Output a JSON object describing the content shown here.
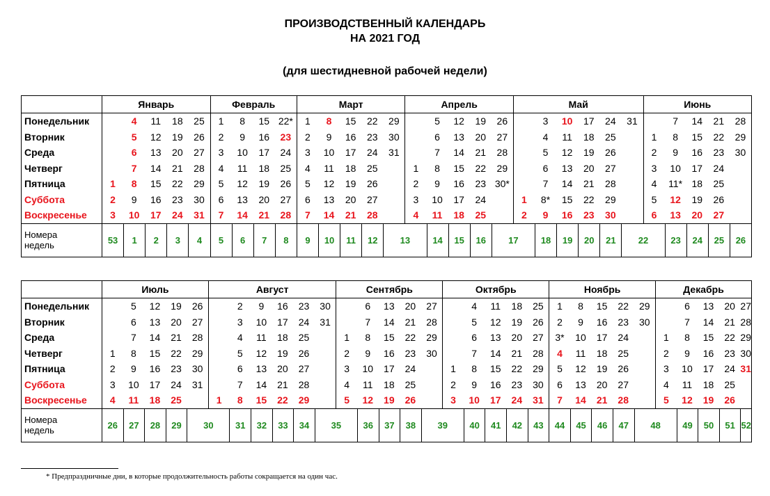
{
  "title_line1": "ПРОИЗВОДСТВЕННЫЙ КАЛЕНДАРЬ",
  "title_line2": "НА 2021 ГОД",
  "subtitle": "(для шестидневной рабочей недели)",
  "weekdays": [
    "Понедельник",
    "Вторник",
    "Среда",
    "Четверг",
    "Пятница",
    "Суббота",
    "Воскресенье"
  ],
  "weekend_rows": [
    5,
    6
  ],
  "week_label": "Номера\nнедель",
  "colors": {
    "holiday": "#e8141c",
    "week_number": "#1f8a1f"
  },
  "footnote": "* Предпраздничные дни, в которые продолжительность работы сокращается на один час.",
  "halves": [
    {
      "months": [
        {
          "name": "Январь",
          "cols": [
            [
              "",
              "",
              "",
              "",
              "1",
              "2",
              "3"
            ],
            [
              "4",
              "5",
              "6",
              "7",
              "8",
              "9",
              "10"
            ],
            [
              "11",
              "12",
              "13",
              "14",
              "15",
              "16",
              "17"
            ],
            [
              "18",
              "19",
              "20",
              "21",
              "22",
              "23",
              "24"
            ],
            [
              "25",
              "26",
              "27",
              "28",
              "29",
              "30",
              "31"
            ]
          ],
          "weeks": [
            "53",
            "1",
            "2",
            "3",
            "4"
          ],
          "red": [
            "1",
            "2",
            "3",
            "4",
            "5",
            "6",
            "7",
            "8",
            "10",
            "17",
            "24",
            "31"
          ]
        },
        {
          "name": "Февраль",
          "cols": [
            [
              "1",
              "2",
              "3",
              "4",
              "5",
              "6",
              "7"
            ],
            [
              "8",
              "9",
              "10",
              "11",
              "12",
              "13",
              "14"
            ],
            [
              "15",
              "16",
              "17",
              "18",
              "19",
              "20",
              "21"
            ],
            [
              "22*",
              "23",
              "24",
              "25",
              "26",
              "27",
              "28"
            ]
          ],
          "weeks": [
            "5",
            "6",
            "7",
            "8"
          ],
          "red": [
            "7",
            "14",
            "21",
            "23",
            "28"
          ]
        },
        {
          "name": "Март",
          "cols": [
            [
              "1",
              "2",
              "3",
              "4",
              "5",
              "6",
              "7"
            ],
            [
              "8",
              "9",
              "10",
              "11",
              "12",
              "13",
              "14"
            ],
            [
              "15",
              "16",
              "17",
              "18",
              "19",
              "20",
              "21"
            ],
            [
              "22",
              "23",
              "24",
              "25",
              "26",
              "27",
              "28"
            ],
            [
              "29",
              "30",
              "31",
              "",
              "",
              "",
              ""
            ]
          ],
          "weeks": [
            "9",
            "10",
            "11",
            "12",
            "13"
          ],
          "red": [
            "7",
            "8",
            "14",
            "21",
            "28"
          ]
        },
        {
          "name": "Апрель",
          "cols": [
            [
              "",
              "",
              "",
              "1",
              "2",
              "3",
              "4"
            ],
            [
              "5",
              "6",
              "7",
              "8",
              "9",
              "10",
              "11"
            ],
            [
              "12",
              "13",
              "14",
              "15",
              "16",
              "17",
              "18"
            ],
            [
              "19",
              "20",
              "21",
              "22",
              "23",
              "24",
              "25"
            ],
            [
              "26",
              "27",
              "28",
              "29",
              "30*",
              "",
              ""
            ]
          ],
          "weeks": [
            "13",
            "14",
            "15",
            "16",
            "17"
          ],
          "red": [
            "4",
            "11",
            "18",
            "25"
          ]
        },
        {
          "name": "Май",
          "cols": [
            [
              "",
              "",
              "",
              "",
              "",
              "1",
              "2"
            ],
            [
              "3",
              "4",
              "5",
              "6",
              "7",
              "8*",
              "9"
            ],
            [
              "10",
              "11",
              "12",
              "13",
              "14",
              "15",
              "16"
            ],
            [
              "17",
              "18",
              "19",
              "20",
              "21",
              "22",
              "23"
            ],
            [
              "24",
              "25",
              "26",
              "27",
              "28",
              "29",
              "30"
            ],
            [
              "31",
              "",
              "",
              "",
              "",
              "",
              ""
            ]
          ],
          "weeks": [
            "17",
            "18",
            "19",
            "20",
            "21",
            "22"
          ],
          "red": [
            "1",
            "2",
            "9",
            "10",
            "16",
            "23",
            "30"
          ]
        },
        {
          "name": "Июнь",
          "cols": [
            [
              "",
              "1",
              "2",
              "3",
              "4",
              "5",
              "6"
            ],
            [
              "7",
              "8",
              "9",
              "10",
              "11*",
              "12",
              "13"
            ],
            [
              "14",
              "15",
              "16",
              "17",
              "18",
              "19",
              "20"
            ],
            [
              "21",
              "22",
              "23",
              "24",
              "25",
              "26",
              "27"
            ],
            [
              "28",
              "29",
              "30",
              "",
              "",
              "",
              ""
            ]
          ],
          "weeks": [
            "22",
            "23",
            "24",
            "25",
            "26"
          ],
          "red": [
            "6",
            "12",
            "13",
            "20",
            "27"
          ]
        }
      ]
    },
    {
      "months": [
        {
          "name": "Июль",
          "cols": [
            [
              "",
              "",
              "",
              "1",
              "2",
              "3",
              "4"
            ],
            [
              "5",
              "6",
              "7",
              "8",
              "9",
              "10",
              "11"
            ],
            [
              "12",
              "13",
              "14",
              "15",
              "16",
              "17",
              "18"
            ],
            [
              "19",
              "20",
              "21",
              "22",
              "23",
              "24",
              "25"
            ],
            [
              "26",
              "27",
              "28",
              "29",
              "30",
              "31",
              ""
            ]
          ],
          "weeks": [
            "26",
            "27",
            "28",
            "29",
            "30"
          ],
          "red": [
            "4",
            "11",
            "18",
            "25"
          ]
        },
        {
          "name": "Август",
          "cols": [
            [
              "",
              "",
              "",
              "",
              "",
              "",
              "1"
            ],
            [
              "2",
              "3",
              "4",
              "5",
              "6",
              "7",
              "8"
            ],
            [
              "9",
              "10",
              "11",
              "12",
              "13",
              "14",
              "15"
            ],
            [
              "16",
              "17",
              "18",
              "19",
              "20",
              "21",
              "22"
            ],
            [
              "23",
              "24",
              "25",
              "26",
              "27",
              "28",
              "29"
            ],
            [
              "30",
              "31",
              "",
              "",
              "",
              "",
              ""
            ]
          ],
          "weeks": [
            "30",
            "31",
            "32",
            "33",
            "34",
            "35"
          ],
          "red": [
            "1",
            "8",
            "15",
            "22",
            "29"
          ]
        },
        {
          "name": "Сентябрь",
          "cols": [
            [
              "",
              "",
              "1",
              "2",
              "3",
              "4",
              "5"
            ],
            [
              "6",
              "7",
              "8",
              "9",
              "10",
              "11",
              "12"
            ],
            [
              "13",
              "14",
              "15",
              "16",
              "17",
              "18",
              "19"
            ],
            [
              "20",
              "21",
              "22",
              "23",
              "24",
              "25",
              "26"
            ],
            [
              "27",
              "28",
              "29",
              "30",
              "",
              "",
              ""
            ]
          ],
          "weeks": [
            "35",
            "36",
            "37",
            "38",
            "39"
          ],
          "red": [
            "5",
            "12",
            "19",
            "26"
          ]
        },
        {
          "name": "Октябрь",
          "cols": [
            [
              "",
              "",
              "",
              "",
              "1",
              "2",
              "3"
            ],
            [
              "4",
              "5",
              "6",
              "7",
              "8",
              "9",
              "10"
            ],
            [
              "11",
              "12",
              "13",
              "14",
              "15",
              "16",
              "17"
            ],
            [
              "18",
              "19",
              "20",
              "21",
              "22",
              "23",
              "24"
            ],
            [
              "25",
              "26",
              "27",
              "28",
              "29",
              "30",
              "31"
            ]
          ],
          "weeks": [
            "39",
            "40",
            "41",
            "42",
            "43"
          ],
          "red": [
            "3",
            "10",
            "17",
            "24",
            "31"
          ]
        },
        {
          "name": "Ноябрь",
          "cols": [
            [
              "1",
              "2",
              "3*",
              "4",
              "5",
              "6",
              "7"
            ],
            [
              "8",
              "9",
              "10",
              "11",
              "12",
              "13",
              "14"
            ],
            [
              "15",
              "16",
              "17",
              "18",
              "19",
              "20",
              "21"
            ],
            [
              "22",
              "23",
              "24",
              "25",
              "26",
              "27",
              "28"
            ],
            [
              "29",
              "30",
              "",
              "",
              "",
              "",
              ""
            ]
          ],
          "weeks": [
            "44",
            "45",
            "46",
            "47",
            "48"
          ],
          "red": [
            "4",
            "7",
            "14",
            "21",
            "28"
          ]
        },
        {
          "name": "Декабрь",
          "cols": [
            [
              "",
              "",
              "1",
              "2",
              "3",
              "4",
              "5"
            ],
            [
              "6",
              "7",
              "8",
              "9",
              "10",
              "11",
              "12"
            ],
            [
              "13",
              "14",
              "15",
              "16",
              "17",
              "18",
              "19"
            ],
            [
              "20",
              "21",
              "22",
              "23",
              "24",
              "25",
              "26"
            ],
            [
              "27",
              "28",
              "29",
              "30",
              "31",
              "",
              ""
            ]
          ],
          "weeks": [
            "48",
            "49",
            "50",
            "51",
            "52"
          ],
          "red": [
            "5",
            "12",
            "19",
            "26",
            "31"
          ]
        }
      ]
    }
  ]
}
